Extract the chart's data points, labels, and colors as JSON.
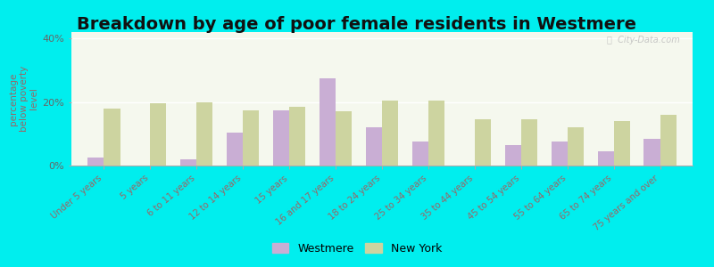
{
  "title": "Breakdown by age of poor female residents in Westmere",
  "ylabel": "percentage\nbelow poverty\nlevel",
  "categories": [
    "Under 5 years",
    "5 years",
    "6 to 11 years",
    "12 to 14 years",
    "15 years",
    "16 and 17 years",
    "18 to 24 years",
    "25 to 34 years",
    "35 to 44 years",
    "45 to 54 years",
    "55 to 64 years",
    "65 to 74 years",
    "75 years and over"
  ],
  "westmere": [
    2.5,
    0.0,
    2.0,
    10.5,
    17.5,
    27.5,
    12.0,
    7.5,
    0.0,
    6.5,
    7.5,
    4.5,
    8.5
  ],
  "new_york": [
    18.0,
    19.5,
    20.0,
    17.5,
    18.5,
    17.0,
    20.5,
    20.5,
    14.5,
    14.5,
    12.0,
    14.0,
    16.0
  ],
  "westmere_color": "#c9aed4",
  "new_york_color": "#cdd4a0",
  "plot_bg_top": "#f5f8ee",
  "plot_bg_bottom": "#e8f2e0",
  "outer_background": "#00eeee",
  "ylim": [
    0,
    42
  ],
  "yticks": [
    0,
    20,
    40
  ],
  "ytick_labels": [
    "0%",
    "20%",
    "40%"
  ],
  "bar_width": 0.35,
  "title_fontsize": 14,
  "legend_labels": [
    "Westmere",
    "New York"
  ],
  "xtick_color": "#996666",
  "ytick_color": "#666666"
}
